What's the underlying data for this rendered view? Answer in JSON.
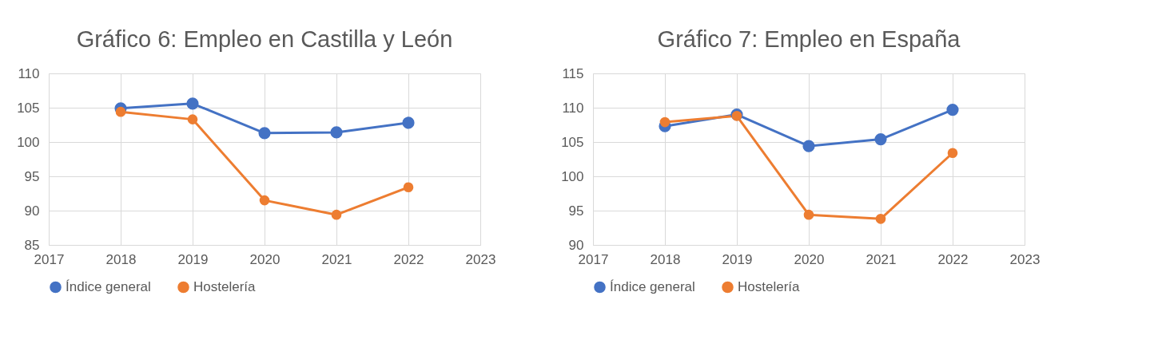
{
  "chart_data": [
    {
      "type": "line",
      "title": "Gráfico 6: Empleo en Castilla y León",
      "x": [
        2018,
        2019,
        2020,
        2021,
        2022
      ],
      "xlim": [
        2017,
        2023
      ],
      "xticks": [
        2017,
        2018,
        2019,
        2020,
        2021,
        2022,
        2023
      ],
      "ylim": [
        85,
        110
      ],
      "yticks": [
        85,
        90,
        95,
        100,
        105,
        110
      ],
      "grid": true,
      "legend": "bottom",
      "marker": "circle",
      "series": [
        {
          "name": "Índice general",
          "color": "#4472c4",
          "values": [
            104.9,
            105.6,
            101.3,
            101.4,
            102.8
          ]
        },
        {
          "name": "Hostelería",
          "color": "#ed7d31",
          "values": [
            104.4,
            103.3,
            91.5,
            89.4,
            93.4
          ]
        }
      ]
    },
    {
      "type": "line",
      "title": "Gráfico 7: Empleo en España",
      "x": [
        2018,
        2019,
        2020,
        2021,
        2022
      ],
      "xlim": [
        2017,
        2023
      ],
      "xticks": [
        2017,
        2018,
        2019,
        2020,
        2021,
        2022,
        2023
      ],
      "ylim": [
        90,
        115
      ],
      "yticks": [
        90,
        95,
        100,
        105,
        110,
        115
      ],
      "grid": true,
      "legend": "bottom",
      "marker": "circle",
      "series": [
        {
          "name": "Índice general",
          "color": "#4472c4",
          "values": [
            107.3,
            109.0,
            104.4,
            105.4,
            109.7
          ]
        },
        {
          "name": "Hostelería",
          "color": "#ed7d31",
          "values": [
            107.9,
            108.8,
            94.4,
            93.8,
            103.4
          ]
        }
      ]
    }
  ]
}
